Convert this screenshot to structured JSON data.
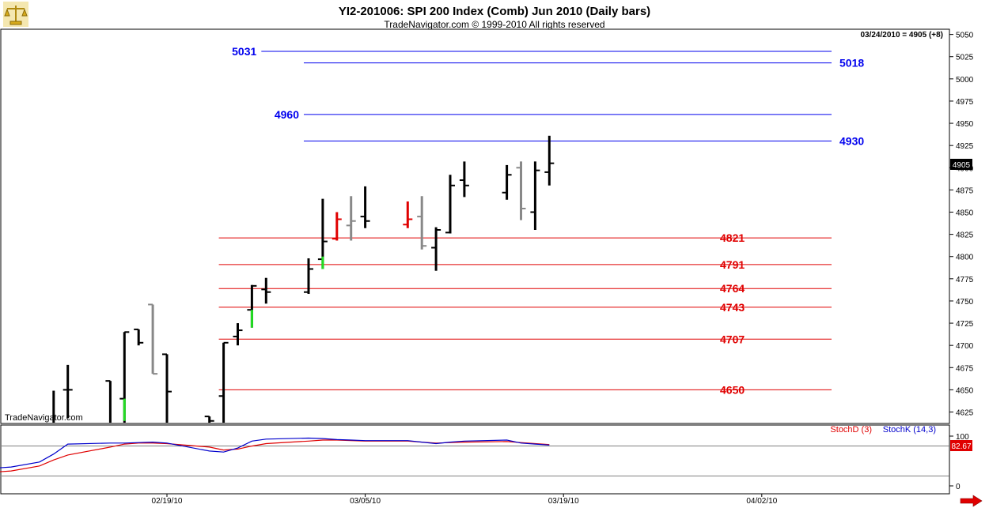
{
  "header": {
    "title": "YI2-201006:  SPI 200 Index (Comb) Jun 2010  (Daily bars)",
    "subtitle": "TradeNavigator.com © 1999-2010 All rights reserved",
    "status": "03/24/2010 = 4905 (+8)",
    "watermark": "TradeNavigator.com"
  },
  "icons": {
    "logo": "scales-logo-icon",
    "scroll": "right-arrow-icon"
  },
  "chart_data": [
    {
      "type": "ohlc",
      "name": "price",
      "ylim": [
        4613,
        5055
      ],
      "yticks": [
        4625,
        4650,
        4675,
        4700,
        4725,
        4750,
        4775,
        4800,
        4825,
        4850,
        4875,
        4900,
        4925,
        4950,
        4975,
        5000,
        5025,
        5050
      ],
      "last_price_label": "4905",
      "colors": {
        "up": "#000000",
        "gray": "#888888",
        "red": "#e00000",
        "green": "#22dd22"
      },
      "bars": [
        {
          "date": "02/11/10",
          "o": 4568,
          "h": 4649,
          "l": 4550,
          "c": 4580,
          "color": "#000000"
        },
        {
          "date": "02/12/10",
          "o": 4650,
          "h": 4678,
          "l": 4618,
          "c": 4650,
          "color": "#000000"
        },
        {
          "date": "02/15/10",
          "o": 4660,
          "h": 4660,
          "l": 4600,
          "c": 4610,
          "color": "#000000"
        },
        {
          "date": "02/16/10",
          "o": 4640,
          "h": 4715,
          "l": 4613,
          "c": 4715,
          "color": "#000000"
        },
        {
          "date": "02/16/10",
          "o": null,
          "h": 4640,
          "l": 4615,
          "c": null,
          "color": "#22dd22"
        },
        {
          "date": "02/17/10",
          "o": 4718,
          "h": 4718,
          "l": 4700,
          "c": 4703,
          "color": "#000000"
        },
        {
          "date": "02/18/10",
          "o": 4746,
          "h": 4746,
          "l": 4668,
          "c": 4668,
          "color": "#888888"
        },
        {
          "date": "02/19/10",
          "o": 4690,
          "h": 4690,
          "l": 4600,
          "c": 4648,
          "color": "#000000"
        },
        {
          "date": "02/22/10",
          "o": 4620,
          "h": 4620,
          "l": 4590,
          "c": 4615,
          "color": "#000000"
        },
        {
          "date": "02/23/10",
          "o": 4643,
          "h": 4703,
          "l": 4580,
          "c": 4703,
          "color": "#000000"
        },
        {
          "date": "02/24/10",
          "o": 4710,
          "h": 4725,
          "l": 4700,
          "c": 4717,
          "color": "#000000"
        },
        {
          "date": "02/25/10",
          "o": 4740,
          "h": 4768,
          "l": 4720,
          "c": 4767,
          "color": "#000000"
        },
        {
          "date": "02/25/10",
          "o": null,
          "h": 4740,
          "l": 4720,
          "c": null,
          "color": "#22dd22"
        },
        {
          "date": "02/26/10",
          "o": 4763,
          "h": 4776,
          "l": 4747,
          "c": 4760,
          "color": "#000000"
        },
        {
          "date": "03/01/10",
          "o": 4760,
          "h": 4798,
          "l": 4758,
          "c": 4786,
          "color": "#000000"
        },
        {
          "date": "03/02/10",
          "o": 4797,
          "h": 4865,
          "l": 4786,
          "c": 4817,
          "color": "#000000"
        },
        {
          "date": "03/02/10",
          "o": null,
          "h": 4800,
          "l": 4786,
          "c": null,
          "color": "#22dd22"
        },
        {
          "date": "03/03/10",
          "o": 4820,
          "h": 4850,
          "l": 4818,
          "c": 4842,
          "color": "#e00000"
        },
        {
          "date": "03/04/10",
          "o": 4835,
          "h": 4868,
          "l": 4818,
          "c": 4840,
          "color": "#888888"
        },
        {
          "date": "03/05/10",
          "o": 4845,
          "h": 4879,
          "l": 4832,
          "c": 4840,
          "color": "#000000"
        },
        {
          "date": "03/08/10",
          "o": 4836,
          "h": 4862,
          "l": 4832,
          "c": 4842,
          "color": "#e00000"
        },
        {
          "date": "03/09/10",
          "o": 4845,
          "h": 4868,
          "l": 4808,
          "c": 4812,
          "color": "#888888"
        },
        {
          "date": "03/10/10",
          "o": 4810,
          "h": 4833,
          "l": 4784,
          "c": 4830,
          "color": "#000000"
        },
        {
          "date": "03/11/10",
          "o": 4827,
          "h": 4892,
          "l": 4826,
          "c": 4880,
          "color": "#000000"
        },
        {
          "date": "03/12/10",
          "o": 4886,
          "h": 4907,
          "l": 4867,
          "c": 4880,
          "color": "#000000"
        },
        {
          "date": "03/15/10",
          "o": 4872,
          "h": 4903,
          "l": 4864,
          "c": 4892,
          "color": "#000000"
        },
        {
          "date": "03/16/10",
          "o": 4900,
          "h": 4907,
          "l": 4841,
          "c": 4854,
          "color": "#888888"
        },
        {
          "date": "03/17/10",
          "o": 4850,
          "h": 4907,
          "l": 4830,
          "c": 4897,
          "color": "#000000"
        },
        {
          "date": "03/18/10",
          "o": 4895,
          "h": 4936,
          "l": 4880,
          "c": 4905,
          "color": "#000000"
        }
      ],
      "levels": [
        {
          "value": 5031,
          "label": "5031",
          "color": "#0000ee",
          "x_from": "02/26/10",
          "label_side": "left"
        },
        {
          "value": 5018,
          "label": "5018",
          "color": "#0000ee",
          "x_from": "03/01/10",
          "label_side": "right"
        },
        {
          "value": 4960,
          "label": "4960",
          "color": "#0000ee",
          "x_from": "03/01/10",
          "label_side": "left"
        },
        {
          "value": 4930,
          "label": "4930",
          "color": "#0000ee",
          "x_from": "03/01/10",
          "label_side": "right"
        },
        {
          "value": 4821,
          "label": "4821",
          "color": "#e00000",
          "x_from": "02/23/10",
          "label_side": "right"
        },
        {
          "value": 4791,
          "label": "4791",
          "color": "#e00000",
          "x_from": "02/23/10",
          "label_side": "right"
        },
        {
          "value": 4764,
          "label": "4764",
          "color": "#e00000",
          "x_from": "02/23/10",
          "label_side": "right"
        },
        {
          "value": 4743,
          "label": "4743",
          "color": "#e00000",
          "x_from": "02/23/10",
          "label_side": "right"
        },
        {
          "value": 4707,
          "label": "4707",
          "color": "#e00000",
          "x_from": "02/23/10",
          "label_side": "right"
        },
        {
          "value": 4650,
          "label": "4650",
          "color": "#e00000",
          "x_from": "02/23/10",
          "label_side": "right"
        }
      ]
    },
    {
      "type": "line",
      "name": "stochastic",
      "ylim": [
        0,
        100
      ],
      "yticks": [
        0,
        100
      ],
      "ref_lines": [
        20,
        80
      ],
      "last_value_label": "82.67",
      "x": [
        "02/02/10",
        "02/04/10",
        "02/08/10",
        "02/10/10",
        "02/11/10",
        "02/12/10",
        "02/15/10",
        "02/16/10",
        "02/17/10",
        "02/18/10",
        "02/19/10",
        "02/22/10",
        "02/23/10",
        "02/24/10",
        "02/25/10",
        "02/26/10",
        "03/01/10",
        "03/02/10",
        "03/03/10",
        "03/04/10",
        "03/05/10",
        "03/08/10",
        "03/09/10",
        "03/10/10",
        "03/11/10",
        "03/12/10",
        "03/15/10",
        "03/16/10",
        "03/17/10",
        "03/18/10"
      ],
      "series": [
        {
          "name": "StochD (3)",
          "color": "#e00000",
          "values": [
            14,
            22,
            30,
            40,
            52,
            62,
            78,
            84,
            86,
            86,
            85,
            78,
            72,
            74,
            80,
            85,
            90,
            92,
            92,
            91,
            90,
            90,
            88,
            86,
            87,
            88,
            89,
            87,
            85,
            83
          ]
        },
        {
          "name": "StochK (14,3)",
          "color": "#0000cc",
          "values": [
            20,
            30,
            38,
            48,
            64,
            84,
            86,
            86,
            87,
            88,
            86,
            70,
            68,
            76,
            90,
            94,
            96,
            95,
            93,
            92,
            91,
            91,
            88,
            85,
            88,
            90,
            92,
            86,
            84,
            82
          ]
        }
      ]
    }
  ],
  "x_axis": {
    "labels": [
      {
        "date": "02/19/10",
        "label": "02/19/10"
      },
      {
        "date": "03/05/10",
        "label": "03/05/10"
      },
      {
        "date": "03/19/10",
        "label": "03/19/10"
      },
      {
        "date": "04/02/10",
        "label": "04/02/10"
      }
    ]
  }
}
